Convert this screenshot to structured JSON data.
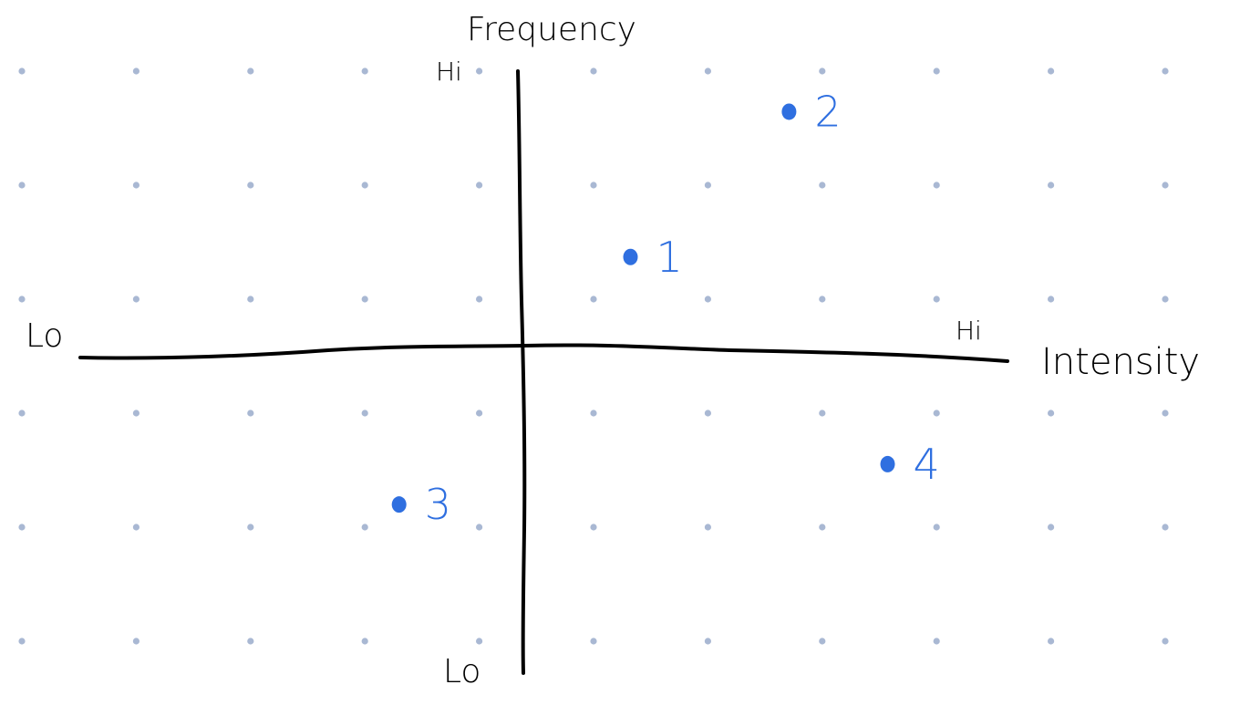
{
  "colors": {
    "background": "#ffffff",
    "grid_dot": "#a9b8d3",
    "axis": "#000000",
    "point": "#2f6fe0"
  },
  "axes": {
    "x_label": "Intensity",
    "y_label": "Frequency",
    "x_low": "Lo",
    "x_high": "Hi",
    "y_low": "Lo",
    "y_high": "Hi"
  },
  "points": [
    {
      "label": "1",
      "quadrant": "high intensity, high frequency",
      "intensity": 0.25,
      "frequency": 0.35
    },
    {
      "label": "2",
      "quadrant": "high intensity, high frequency",
      "intensity": 0.62,
      "frequency": 0.89
    },
    {
      "label": "3",
      "quadrant": "low intensity, low frequency",
      "intensity": -0.29,
      "frequency": -0.57
    },
    {
      "label": "4",
      "quadrant": "high intensity, low frequency",
      "intensity": 0.85,
      "frequency": -0.42
    }
  ]
}
